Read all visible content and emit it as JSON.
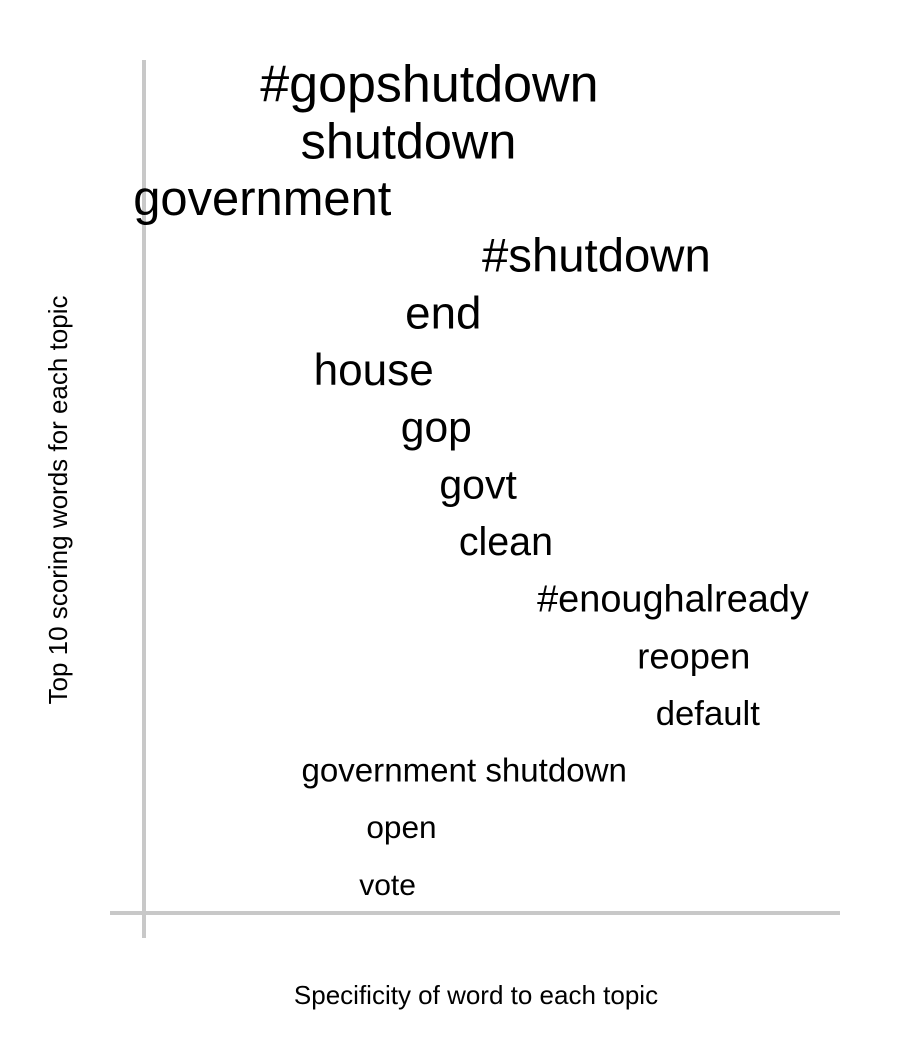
{
  "chart_data": {
    "type": "scatter",
    "xlabel": "Specificity of word to each topic",
    "ylabel": "Top 10 scoring words for each topic",
    "xlim": [
      0,
      1
    ],
    "words": [
      {
        "label": "#gopshutdown",
        "specificity": 0.41,
        "score": 15
      },
      {
        "label": "shutdown",
        "specificity": 0.38,
        "score": 14
      },
      {
        "label": "government",
        "specificity": 0.17,
        "score": 13
      },
      {
        "label": "#shutdown",
        "specificity": 0.65,
        "score": 12
      },
      {
        "label": "end",
        "specificity": 0.43,
        "score": 11
      },
      {
        "label": "house",
        "specificity": 0.33,
        "score": 10
      },
      {
        "label": "gop",
        "specificity": 0.42,
        "score": 9
      },
      {
        "label": "govt",
        "specificity": 0.48,
        "score": 8
      },
      {
        "label": "clean",
        "specificity": 0.52,
        "score": 7
      },
      {
        "label": "#enoughalready",
        "specificity": 0.76,
        "score": 6
      },
      {
        "label": "reopen",
        "specificity": 0.79,
        "score": 5
      },
      {
        "label": "default",
        "specificity": 0.81,
        "score": 4
      },
      {
        "label": "government shutdown",
        "specificity": 0.46,
        "score": 3
      },
      {
        "label": "open",
        "specificity": 0.37,
        "score": 2
      },
      {
        "label": "vote",
        "specificity": 0.35,
        "score": 1
      }
    ]
  }
}
